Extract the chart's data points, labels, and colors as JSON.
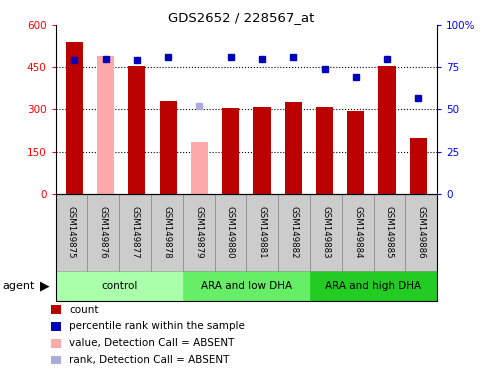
{
  "title": "GDS2652 / 228567_at",
  "categories": [
    "GSM149875",
    "GSM149876",
    "GSM149877",
    "GSM149878",
    "GSM149879",
    "GSM149880",
    "GSM149881",
    "GSM149882",
    "GSM149883",
    "GSM149884",
    "GSM149885",
    "GSM149886"
  ],
  "bar_values": [
    540,
    490,
    455,
    330,
    185,
    305,
    310,
    325,
    310,
    295,
    455,
    200
  ],
  "bar_absent": [
    false,
    true,
    false,
    false,
    true,
    false,
    false,
    false,
    false,
    false,
    false,
    false
  ],
  "percentile": [
    79,
    80,
    79,
    81,
    52,
    81,
    80,
    81,
    74,
    69,
    80,
    57
  ],
  "pct_absent": [
    false,
    false,
    false,
    false,
    true,
    false,
    false,
    false,
    false,
    false,
    false,
    false
  ],
  "ylim_left": [
    0,
    600
  ],
  "ylim_right": [
    0,
    100
  ],
  "yticks_left": [
    0,
    150,
    300,
    450,
    600
  ],
  "ytick_labels_left": [
    "0",
    "150",
    "300",
    "450",
    "600"
  ],
  "yticks_right": [
    0,
    25,
    50,
    75,
    100
  ],
  "ytick_labels_right": [
    "0",
    "25",
    "50",
    "75",
    "100%"
  ],
  "groups": [
    {
      "label": "control",
      "start": 0,
      "end": 3,
      "color": "#aaffaa"
    },
    {
      "label": "ARA and low DHA",
      "start": 4,
      "end": 7,
      "color": "#66ee66"
    },
    {
      "label": "ARA and high DHA",
      "start": 8,
      "end": 11,
      "color": "#22cc22"
    }
  ],
  "bar_color_present": "#bb0000",
  "bar_color_absent": "#ffaaaa",
  "dot_color_present": "#0000bb",
  "dot_color_absent": "#aaaadd",
  "legend_items": [
    {
      "label": "count",
      "color": "#bb0000"
    },
    {
      "label": "percentile rank within the sample",
      "color": "#0000bb"
    },
    {
      "label": "value, Detection Call = ABSENT",
      "color": "#ffaaaa"
    },
    {
      "label": "rank, Detection Call = ABSENT",
      "color": "#aaaadd"
    }
  ],
  "agent_label": "agent",
  "xlabel_area_color": "#cccccc",
  "plot_bg": "#ffffff"
}
